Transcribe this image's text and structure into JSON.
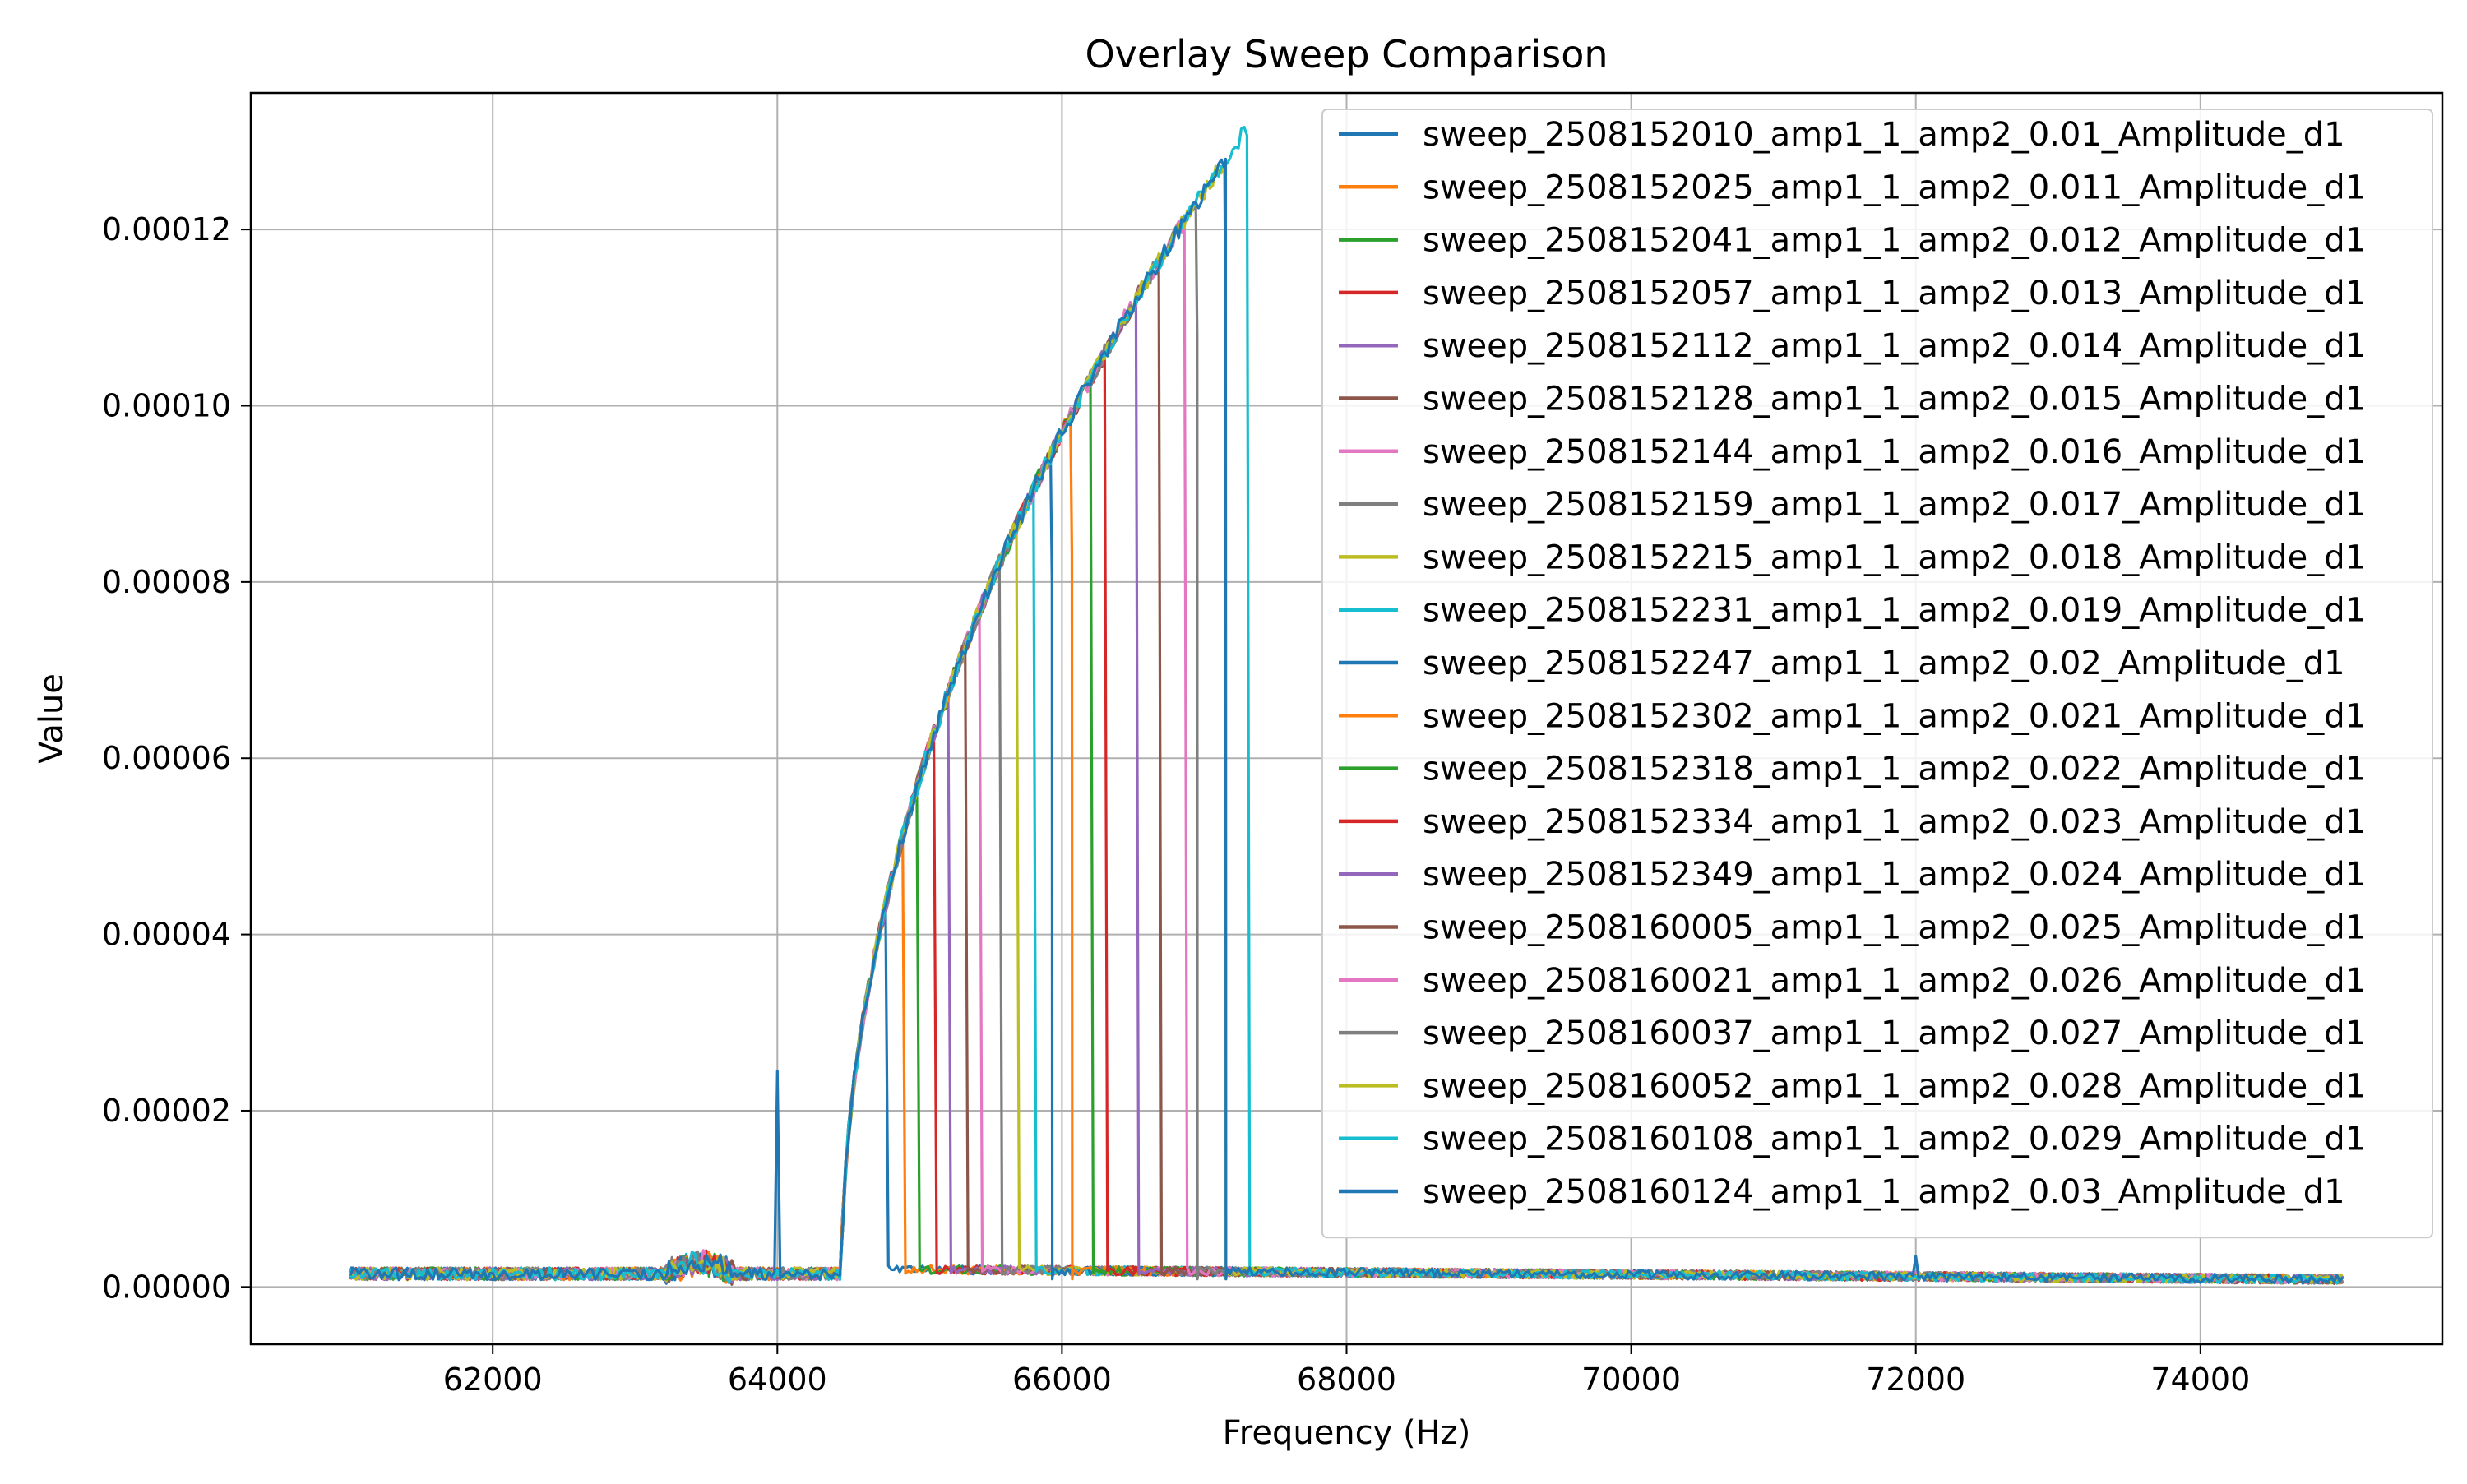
{
  "chart_data": {
    "type": "line",
    "title": "Overlay Sweep Comparison",
    "xlabel": "Frequency (Hz)",
    "ylabel": "Value",
    "xlim": [
      60300,
      75700
    ],
    "ylim": [
      -6.5e-06,
      0.0001355
    ],
    "xticks": [
      62000,
      64000,
      66000,
      68000,
      70000,
      72000,
      74000
    ],
    "xtick_labels": [
      "62000",
      "64000",
      "66000",
      "68000",
      "70000",
      "72000",
      "74000"
    ],
    "yticks": [
      0,
      2e-05,
      4e-05,
      6e-05,
      8e-05,
      0.0001,
      0.00012
    ],
    "ytick_labels": [
      "0.00000",
      "0.00002",
      "0.00004",
      "0.00006",
      "0.00008",
      "0.00010",
      "0.00012"
    ],
    "grid": true,
    "legend_position": "top-right",
    "x_start": 61000,
    "x_end": 75000,
    "rise_start_frequency": 64450,
    "baseline_level": 1.5e-06,
    "spur_at_64000": 2.45e-05,
    "series": [
      {
        "name": "sweep_2508152010_amp1_1_amp2_0.01_Amplitude_d1",
        "color": "#1f77b4",
        "drop_frequency": 64760,
        "peak": 4e-05
      },
      {
        "name": "sweep_2508152025_amp1_1_amp2_0.011_Amplitude_d1",
        "color": "#ff7f0e",
        "drop_frequency": 64880,
        "peak": 4.6e-05
      },
      {
        "name": "sweep_2508152041_amp1_1_amp2_0.012_Amplitude_d1",
        "color": "#2ca02c",
        "drop_frequency": 64980,
        "peak": 5e-05
      },
      {
        "name": "sweep_2508152057_amp1_1_amp2_0.013_Amplitude_d1",
        "color": "#d62728",
        "drop_frequency": 65100,
        "peak": 5.5e-05
      },
      {
        "name": "sweep_2508152112_amp1_1_amp2_0.014_Amplitude_d1",
        "color": "#9467bd",
        "drop_frequency": 65200,
        "peak": 5.8e-05
      },
      {
        "name": "sweep_2508152128_amp1_1_amp2_0.015_Amplitude_d1",
        "color": "#8c564b",
        "drop_frequency": 65320,
        "peak": 6.3e-05
      },
      {
        "name": "sweep_2508152144_amp1_1_amp2_0.016_Amplitude_d1",
        "color": "#e377c2",
        "drop_frequency": 65420,
        "peak": 6.6e-05
      },
      {
        "name": "sweep_2508152159_amp1_1_amp2_0.017_Amplitude_d1",
        "color": "#7f7f7f",
        "drop_frequency": 65560,
        "peak": 6.9e-05
      },
      {
        "name": "sweep_2508152215_amp1_1_amp2_0.018_Amplitude_d1",
        "color": "#bcbd22",
        "drop_frequency": 65680,
        "peak": 7.2e-05
      },
      {
        "name": "sweep_2508152231_amp1_1_amp2_0.019_Amplitude_d1",
        "color": "#17becf",
        "drop_frequency": 65800,
        "peak": 7.6e-05
      },
      {
        "name": "sweep_2508152247_amp1_1_amp2_0.02_Amplitude_d1",
        "color": "#1f77b4",
        "drop_frequency": 65930,
        "peak": 8e-05
      },
      {
        "name": "sweep_2508152302_amp1_1_amp2_0.021_Amplitude_d1",
        "color": "#ff7f0e",
        "drop_frequency": 66070,
        "peak": 8.3e-05
      },
      {
        "name": "sweep_2508152318_amp1_1_amp2_0.022_Amplitude_d1",
        "color": "#2ca02c",
        "drop_frequency": 66200,
        "peak": 8.6e-05
      },
      {
        "name": "sweep_2508152334_amp1_1_amp2_0.023_Amplitude_d1",
        "color": "#d62728",
        "drop_frequency": 66300,
        "peak": 8.9e-05
      },
      {
        "name": "sweep_2508152349_amp1_1_amp2_0.024_Amplitude_d1",
        "color": "#9467bd",
        "drop_frequency": 66520,
        "peak": 9.4e-05
      },
      {
        "name": "sweep_2508160005_amp1_1_amp2_0.025_Amplitude_d1",
        "color": "#8c564b",
        "drop_frequency": 66680,
        "peak": 9.8e-05
      },
      {
        "name": "sweep_2508160021_amp1_1_amp2_0.026_Amplitude_d1",
        "color": "#e377c2",
        "drop_frequency": 66860,
        "peak": 0.000104
      },
      {
        "name": "sweep_2508160037_amp1_1_amp2_0.027_Amplitude_d1",
        "color": "#7f7f7f",
        "drop_frequency": 66950,
        "peak": 0.000108
      },
      {
        "name": "sweep_2508160052_amp1_1_amp2_0.028_Amplitude_d1",
        "color": "#bcbd22",
        "drop_frequency": 67150,
        "peak": 0.000113
      },
      {
        "name": "sweep_2508160108_amp1_1_amp2_0.029_Amplitude_d1",
        "color": "#17becf",
        "drop_frequency": 67300,
        "peak": 0.00012
      },
      {
        "name": "sweep_2508160124_amp1_1_amp2_0.03_Amplitude_d1",
        "color": "#1f77b4",
        "drop_frequency": 67150,
        "peak": 0.000128
      }
    ]
  }
}
